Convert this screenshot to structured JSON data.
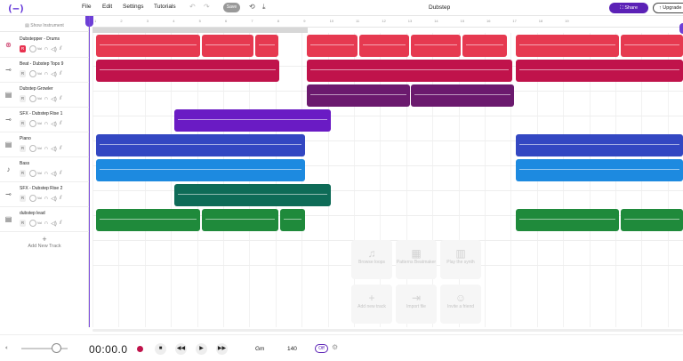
{
  "topbar": {
    "logo": "(—)",
    "menu": [
      "File",
      "Edit",
      "Settings",
      "Tutorials"
    ],
    "save_label": "Save",
    "project_title": "Dubstep",
    "share_label": "Share",
    "upgrade_label": "Upgrade"
  },
  "panel": {
    "show_instrument": "Show Instrument",
    "add_track": "Add New Track"
  },
  "tracks": [
    {
      "name": "Dubstepper - Drums",
      "icon": "drum-icon",
      "color": "#e63950"
    },
    {
      "name": "Beat - Dubstep Tops 9",
      "icon": "waveform-icon",
      "color": "#c0134b"
    },
    {
      "name": "Dubstep Growler",
      "icon": "keyboard-icon",
      "color": "#6b1a6e"
    },
    {
      "name": "SFX - Dubstep Rise 1",
      "icon": "waveform-icon",
      "color": "#6a1bc4"
    },
    {
      "name": "Piano",
      "icon": "keyboard-icon",
      "color": "#3347c2"
    },
    {
      "name": "Bass",
      "icon": "guitar-icon",
      "color": "#1d8ae0"
    },
    {
      "name": "SFX - Dubstep Rise 2",
      "icon": "waveform-icon",
      "color": "#0e6b57"
    },
    {
      "name": "dubstep lead",
      "icon": "keyboard-icon",
      "color": "#1f8a3b"
    }
  ],
  "track_controls": {
    "r": "R",
    "knob_label": "Vol"
  },
  "ruler": [
    "1",
    "2",
    "3",
    "4",
    "5",
    "6",
    "7",
    "8",
    "9",
    "10",
    "11",
    "12",
    "13",
    "14",
    "15",
    "16",
    "17",
    "18",
    "19"
  ],
  "empty_actions": [
    {
      "label": "Browse loops",
      "icon": "music-note-icon"
    },
    {
      "label": "Patterns Beatmaker",
      "icon": "grid-icon"
    },
    {
      "label": "Play the synth",
      "icon": "keys-icon"
    },
    {
      "label": "Add new track",
      "icon": "plus-icon"
    },
    {
      "label": "Import file",
      "icon": "import-icon"
    },
    {
      "label": "Invite a friend",
      "icon": "person-add-icon"
    }
  ],
  "transport": {
    "time": "00:00.0",
    "key": "Gm",
    "bpm": "140",
    "metronome": "Off"
  }
}
